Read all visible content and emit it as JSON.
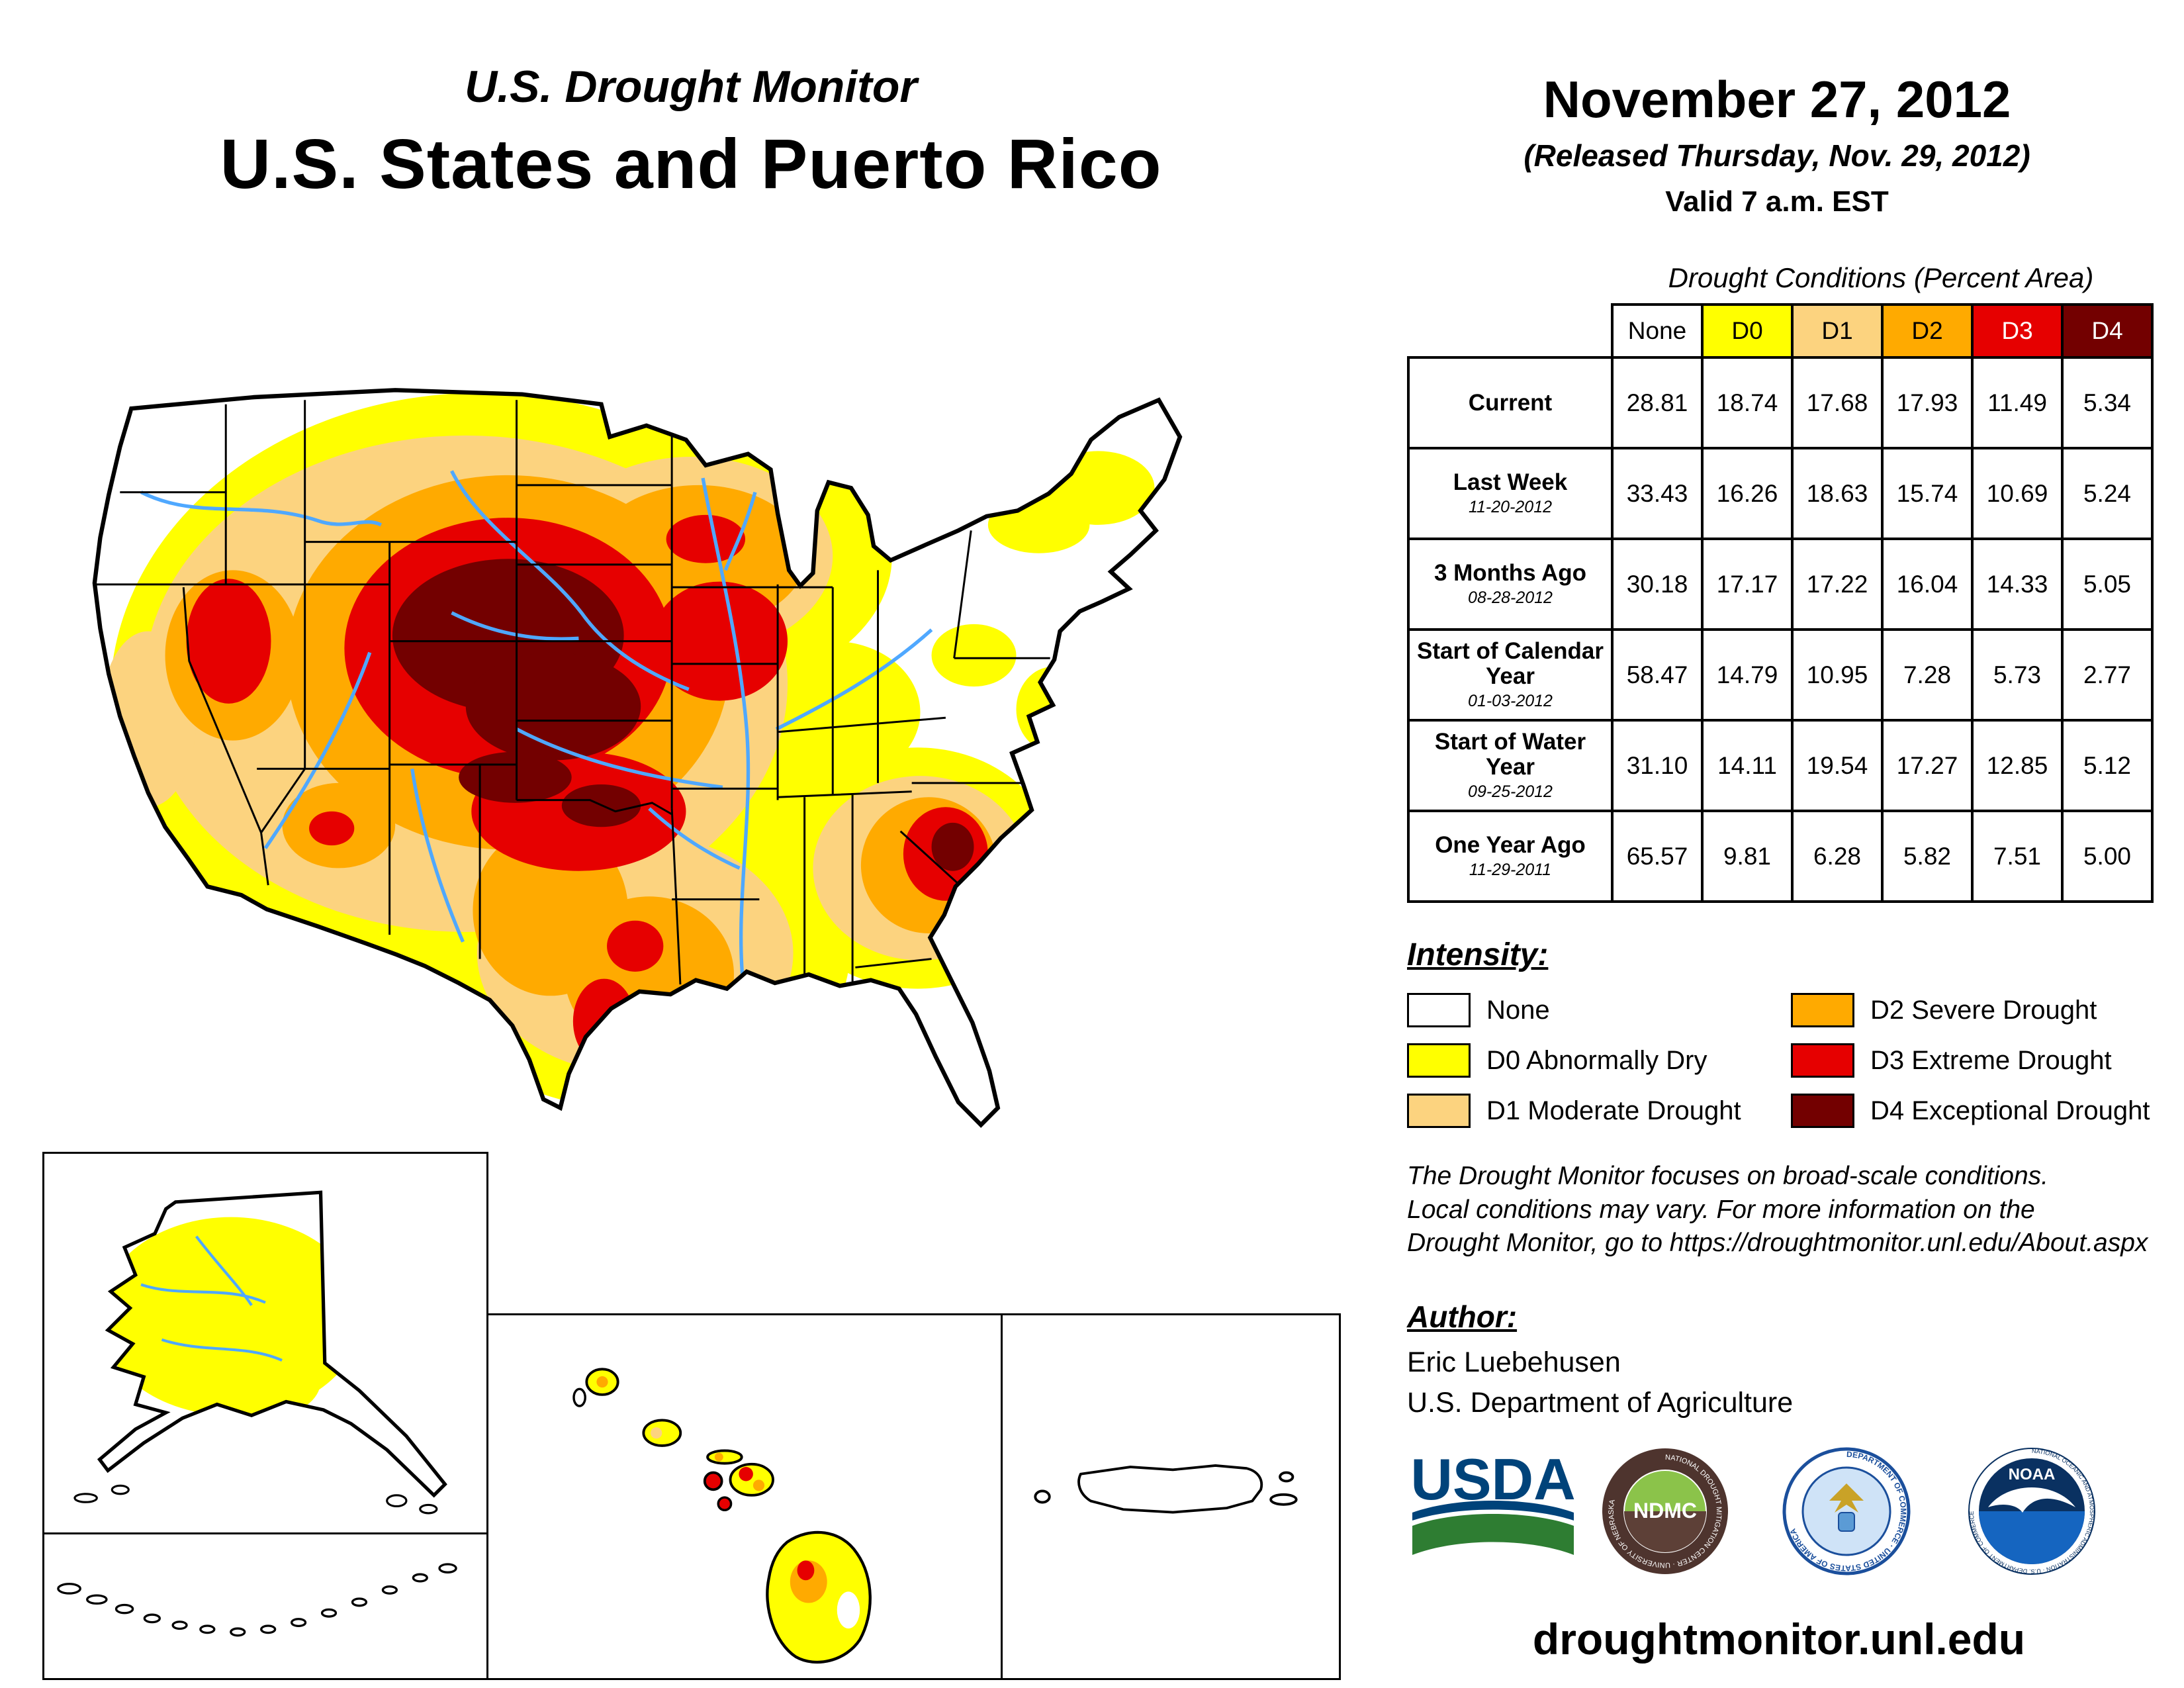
{
  "header": {
    "title_line1": "U.S. Drought Monitor",
    "title_line2": "U.S. States and Puerto Rico",
    "date": "November 27, 2012",
    "released": "(Released Thursday, Nov. 29, 2012)",
    "valid": "Valid 7 a.m. EST"
  },
  "table": {
    "title": "Drought Conditions (Percent Area)",
    "columns": [
      "None",
      "D0",
      "D1",
      "D2",
      "D3",
      "D4"
    ],
    "header_colors": [
      "#FFFFFF",
      "#FFFF00",
      "#FCD37F",
      "#FFAA00",
      "#E60000",
      "#730000"
    ],
    "header_text_colors": [
      "#000000",
      "#000000",
      "#000000",
      "#000000",
      "#FFFFFF",
      "#FFFFFF"
    ],
    "rows": [
      {
        "label": "Current",
        "sublabel": "",
        "values": [
          "28.81",
          "18.74",
          "17.68",
          "17.93",
          "11.49",
          "5.34"
        ]
      },
      {
        "label": "Last Week",
        "sublabel": "11-20-2012",
        "values": [
          "33.43",
          "16.26",
          "18.63",
          "15.74",
          "10.69",
          "5.24"
        ]
      },
      {
        "label": "3 Months Ago",
        "sublabel": "08-28-2012",
        "values": [
          "30.18",
          "17.17",
          "17.22",
          "16.04",
          "14.33",
          "5.05"
        ]
      },
      {
        "label": "Start of Calendar Year",
        "sublabel": "01-03-2012",
        "values": [
          "58.47",
          "14.79",
          "10.95",
          "7.28",
          "5.73",
          "2.77"
        ]
      },
      {
        "label": "Start of Water Year",
        "sublabel": "09-25-2012",
        "values": [
          "31.10",
          "14.11",
          "19.54",
          "17.27",
          "12.85",
          "5.12"
        ]
      },
      {
        "label": "One Year Ago",
        "sublabel": "11-29-2011",
        "values": [
          "65.57",
          "9.81",
          "6.28",
          "5.82",
          "7.51",
          "5.00"
        ]
      }
    ]
  },
  "legend": {
    "title": "Intensity:",
    "items": [
      {
        "label": "None",
        "color": "#FFFFFF"
      },
      {
        "label": "D0 Abnormally Dry",
        "color": "#FFFF00"
      },
      {
        "label": "D1 Moderate Drought",
        "color": "#FCD37F"
      },
      {
        "label": "D2 Severe Drought",
        "color": "#FFAA00"
      },
      {
        "label": "D3 Extreme Drought",
        "color": "#E60000"
      },
      {
        "label": "D4 Exceptional Drought",
        "color": "#730000"
      }
    ]
  },
  "disclaimer": {
    "line1": "The Drought Monitor focuses on broad-scale conditions.",
    "line2": "Local conditions may vary. For more information on the",
    "line3": "Drought Monitor, go to https://droughtmonitor.unl.edu/About.aspx"
  },
  "author": {
    "heading": "Author:",
    "name": "Eric Luebehusen",
    "organization": "U.S. Department of Agriculture"
  },
  "logos": {
    "usda_text": "USDA",
    "ndmc_text": "NDMC",
    "ndmc_ring_text": "NATIONAL DROUGHT MITIGATION CENTER · UNIVERSITY OF NEBRASKA",
    "commerce_ring_text": "DEPARTMENT OF COMMERCE · UNITED STATES OF AMERICA",
    "noaa_text": "NOAA",
    "noaa_ring_text": "NATIONAL OCEANIC AND ATMOSPHERIC ADMINISTRATION · U.S. DEPARTMENT OF COMMERCE"
  },
  "footer": {
    "url": "droughtmonitor.unl.edu"
  }
}
